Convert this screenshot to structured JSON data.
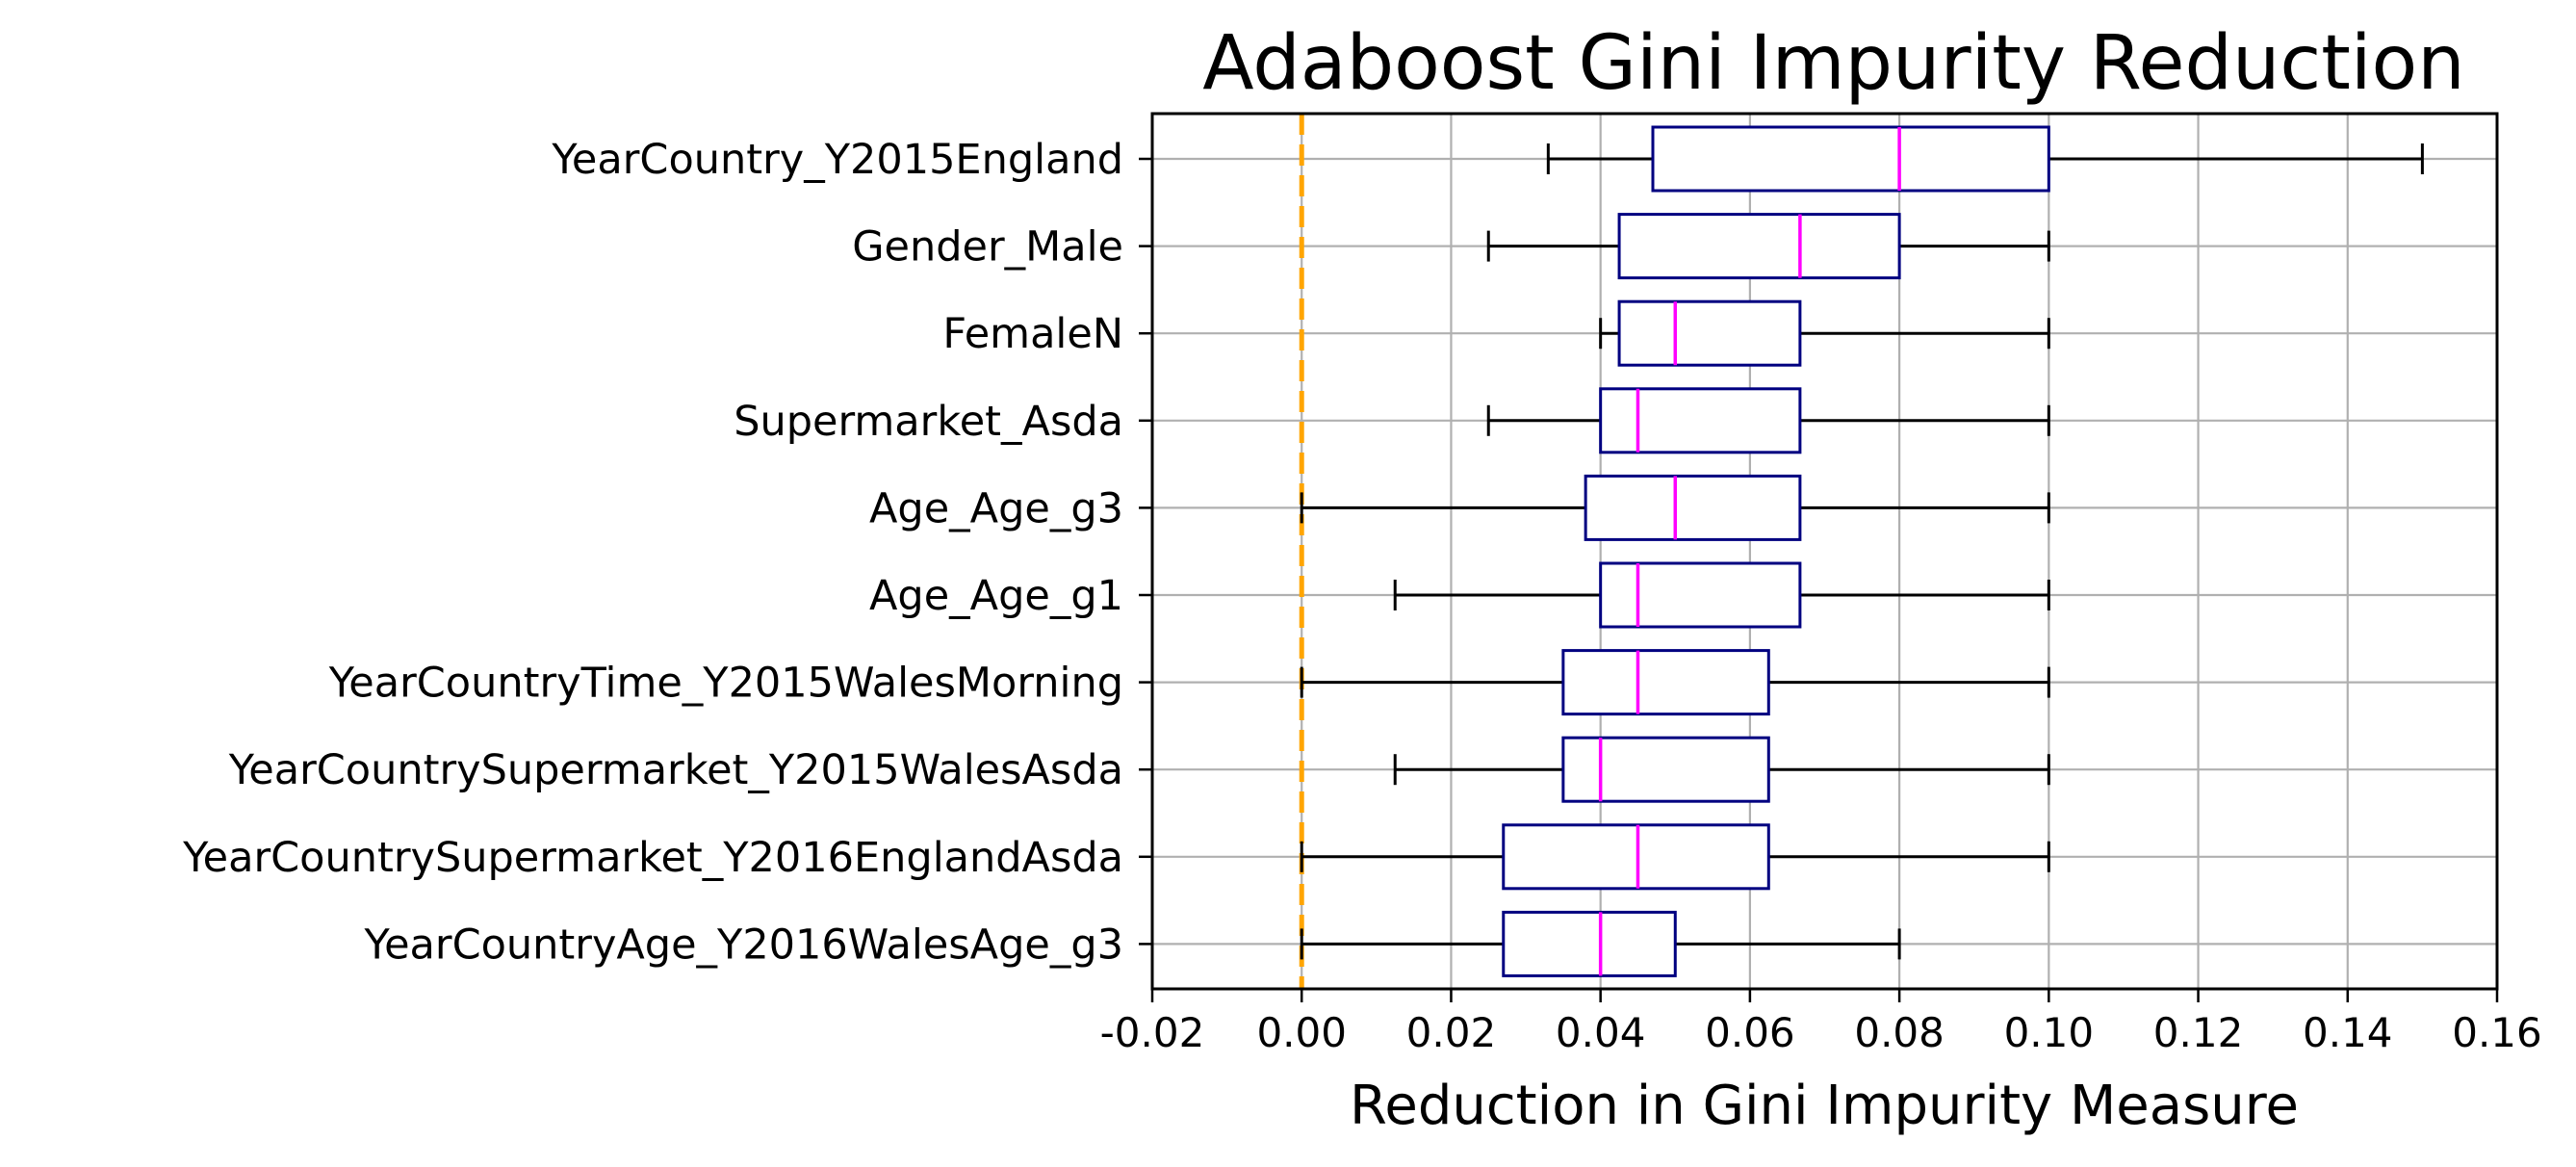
{
  "chart_data": {
    "type": "boxplot",
    "orientation": "horizontal",
    "title": "Adaboost Gini Impurity Reduction",
    "xlabel": "Reduction in Gini Impurity Measure",
    "ylabel": "",
    "xlim": [
      -0.02,
      0.16
    ],
    "xticks": [
      -0.02,
      0.0,
      0.02,
      0.04,
      0.06,
      0.08,
      0.1,
      0.12,
      0.14,
      0.16
    ],
    "xtick_labels": [
      "-0.02",
      "0.00",
      "0.02",
      "0.04",
      "0.06",
      "0.08",
      "0.10",
      "0.12",
      "0.14",
      "0.16"
    ],
    "grid": true,
    "reference_line": {
      "x": 0.0,
      "style": "dashed",
      "color": "#ffa500"
    },
    "colors": {
      "box": "#000080",
      "median": "#ff00ff",
      "whisker": "#000000",
      "grid": "#b0b0b0"
    },
    "categories": [
      "YearCountry_Y2015England",
      "Gender_Male",
      "FemaleN",
      "Supermarket_Asda",
      "Age_Age_g3",
      "Age_Age_g1",
      "YearCountryTime_Y2015WalesMorning",
      "YearCountrySupermarket_Y2015WalesAsda",
      "YearCountrySupermarket_Y2016EnglandAsda",
      "YearCountryAge_Y2016WalesAge_g3"
    ],
    "boxes": [
      {
        "whislo": 0.033,
        "q1": 0.047,
        "med": 0.08,
        "q3": 0.1,
        "whishi": 0.15
      },
      {
        "whislo": 0.025,
        "q1": 0.0425,
        "med": 0.0667,
        "q3": 0.08,
        "whishi": 0.1
      },
      {
        "whislo": 0.04,
        "q1": 0.0425,
        "med": 0.05,
        "q3": 0.0667,
        "whishi": 0.1
      },
      {
        "whislo": 0.025,
        "q1": 0.04,
        "med": 0.045,
        "q3": 0.0667,
        "whishi": 0.1
      },
      {
        "whislo": 0.0,
        "q1": 0.038,
        "med": 0.05,
        "q3": 0.0667,
        "whishi": 0.1
      },
      {
        "whislo": 0.0125,
        "q1": 0.04,
        "med": 0.045,
        "q3": 0.0667,
        "whishi": 0.1
      },
      {
        "whislo": 0.0,
        "q1": 0.035,
        "med": 0.045,
        "q3": 0.0625,
        "whishi": 0.1
      },
      {
        "whislo": 0.0125,
        "q1": 0.035,
        "med": 0.04,
        "q3": 0.0625,
        "whishi": 0.1
      },
      {
        "whislo": 0.0,
        "q1": 0.027,
        "med": 0.045,
        "q3": 0.0625,
        "whishi": 0.1
      },
      {
        "whislo": 0.0,
        "q1": 0.027,
        "med": 0.04,
        "q3": 0.05,
        "whishi": 0.08
      }
    ]
  }
}
